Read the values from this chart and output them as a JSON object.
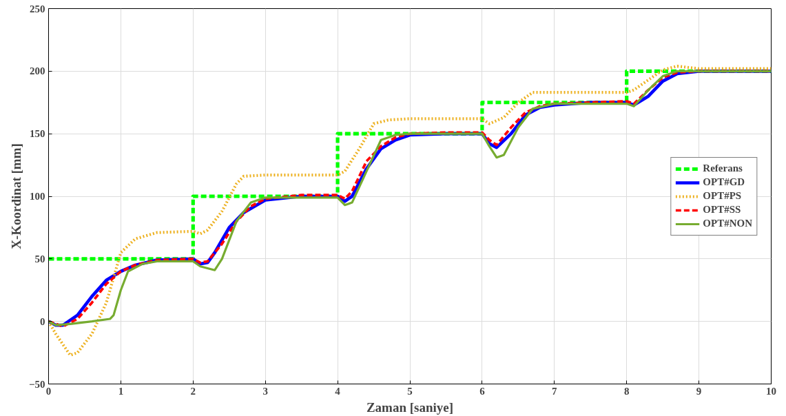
{
  "chart_data": {
    "type": "line",
    "xlabel": "Zaman [saniye]",
    "ylabel": "X-Koordinat [mm]",
    "xlim": [
      0,
      10
    ],
    "ylim": [
      -50,
      250
    ],
    "xticks": [
      0,
      1,
      2,
      3,
      4,
      5,
      6,
      7,
      8,
      9,
      10
    ],
    "yticks": [
      -50,
      0,
      50,
      100,
      150,
      200,
      250
    ],
    "grid": true,
    "legend": "right",
    "series": [
      {
        "name": "Referans",
        "color": "#00ff00",
        "line_style": "dashed",
        "x": [
          0,
          2,
          2,
          4,
          4,
          6,
          6,
          8,
          8,
          10
        ],
        "values": [
          50,
          50,
          100,
          100,
          150,
          150,
          175,
          175,
          200,
          200
        ]
      },
      {
        "name": "OPT#GD",
        "color": "#0000ff",
        "line_style": "solid",
        "x": [
          0,
          0.1,
          0.2,
          0.4,
          0.6,
          0.8,
          1,
          1.2,
          1.5,
          2,
          2.1,
          2.2,
          2.3,
          2.5,
          2.7,
          3,
          3.5,
          4,
          4.1,
          4.2,
          4.4,
          4.6,
          4.8,
          5,
          5.5,
          6,
          6.1,
          6.2,
          6.4,
          6.6,
          6.8,
          7,
          7.5,
          8,
          8.1,
          8.3,
          8.5,
          8.7,
          9,
          10
        ],
        "values": [
          0,
          -3,
          -3,
          5,
          20,
          33,
          40,
          45,
          49,
          50,
          46,
          47,
          55,
          75,
          87,
          97,
          100,
          100,
          96,
          100,
          122,
          138,
          145,
          149,
          150,
          150,
          142,
          139,
          150,
          165,
          171,
          173,
          175,
          175,
          173,
          180,
          192,
          198,
          200,
          200
        ]
      },
      {
        "name": "OPT#PS",
        "color": "#edb120",
        "line_style": "dotted",
        "x": [
          0,
          0.1,
          0.3,
          0.4,
          0.6,
          0.8,
          1,
          1.2,
          1.5,
          2,
          2.1,
          2.2,
          2.4,
          2.6,
          2.7,
          3,
          4,
          4.1,
          4.3,
          4.5,
          4.7,
          5,
          6,
          6.1,
          6.3,
          6.5,
          6.7,
          7,
          8,
          8.1,
          8.3,
          8.5,
          8.7,
          9,
          10
        ],
        "values": [
          0,
          -10,
          -27,
          -25,
          -10,
          15,
          55,
          66,
          71,
          72,
          70,
          73,
          88,
          110,
          116,
          117,
          117,
          120,
          138,
          158,
          161,
          162,
          162,
          158,
          163,
          175,
          183,
          183,
          183,
          185,
          193,
          201,
          204,
          202,
          202
        ]
      },
      {
        "name": "OPT#SS",
        "color": "#ff0000",
        "line_style": "dashed",
        "x": [
          0,
          0.2,
          0.4,
          0.6,
          0.8,
          1,
          1.2,
          1.5,
          2,
          2.1,
          2.2,
          2.4,
          2.6,
          2.8,
          3,
          3.5,
          4,
          4.1,
          4.2,
          4.4,
          4.6,
          4.8,
          5,
          5.5,
          6,
          6.1,
          6.2,
          6.4,
          6.6,
          6.8,
          7,
          8,
          8.1,
          8.3,
          8.5,
          8.7,
          9,
          10
        ],
        "values": [
          0,
          -4,
          2,
          15,
          30,
          40,
          45,
          49,
          50,
          47,
          48,
          62,
          80,
          92,
          98,
          101,
          101,
          98,
          104,
          128,
          140,
          147,
          150,
          151,
          151,
          145,
          141,
          155,
          167,
          172,
          174,
          176,
          174,
          185,
          195,
          199,
          200,
          200
        ]
      },
      {
        "name": "OPT#NON",
        "color": "#77ac30",
        "line_style": "solid",
        "x": [
          0,
          0.1,
          0.3,
          0.6,
          0.85,
          0.9,
          1,
          1.1,
          1.3,
          1.5,
          2,
          2.1,
          2.3,
          2.4,
          2.6,
          2.8,
          3,
          4,
          4.1,
          4.2,
          4.4,
          4.6,
          4.8,
          5,
          6,
          6.1,
          6.2,
          6.3,
          6.5,
          6.7,
          7,
          8,
          8.1,
          8.3,
          8.5,
          8.7,
          10
        ],
        "values": [
          0,
          -3,
          -2,
          0,
          2,
          5,
          25,
          40,
          46,
          48,
          48,
          44,
          41,
          50,
          80,
          95,
          99,
          99,
          93,
          95,
          120,
          145,
          149,
          150,
          150,
          140,
          131,
          133,
          155,
          170,
          174,
          174,
          172,
          185,
          196,
          200,
          200
        ]
      }
    ]
  }
}
